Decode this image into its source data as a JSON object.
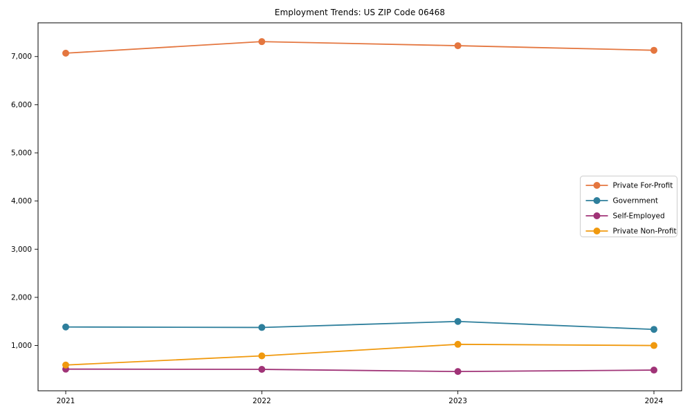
{
  "chart_data": {
    "type": "line",
    "title": "Employment Trends: US ZIP Code 06468",
    "xlabel": "",
    "ylabel": "",
    "x_labels": [
      "2021",
      "2022",
      "2023",
      "2024"
    ],
    "series": [
      {
        "name": "Private For-Profit",
        "color": "#e4763f",
        "values": [
          7070,
          7310,
          7225,
          7130
        ]
      },
      {
        "name": "Government",
        "color": "#2e7f9c",
        "values": [
          1385,
          1375,
          1500,
          1335
        ]
      },
      {
        "name": "Self-Employed",
        "color": "#a03377",
        "values": [
          510,
          505,
          460,
          490
        ]
      },
      {
        "name": "Private Non-Profit",
        "color": "#f0990e",
        "values": [
          595,
          785,
          1025,
          1000
        ]
      }
    ],
    "ylim": [
      60,
      7700
    ],
    "yticks": {
      "values": [
        1000,
        2000,
        3000,
        4000,
        5000,
        6000,
        7000
      ],
      "labels": [
        "1,000",
        "2,000",
        "3,000",
        "4,000",
        "5,000",
        "6,000",
        "7,000"
      ]
    },
    "legend": {
      "position": "middle-right",
      "entries": [
        "Private For-Profit",
        "Government",
        "Self-Employed",
        "Private Non-Profit"
      ]
    },
    "grid": false,
    "frame_color": "#000000",
    "legend_border_color": "#cccccc",
    "marker": "circle"
  }
}
